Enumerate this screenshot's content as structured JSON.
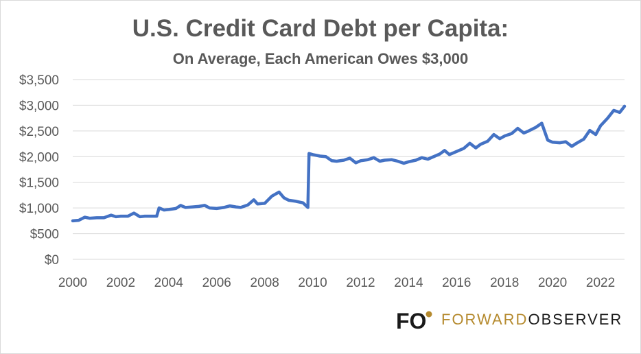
{
  "title": "U.S. Credit Card Debt per Capita:",
  "subtitle": "On Average, Each American Owes $3,000",
  "brand": {
    "logo_letters": "FO",
    "word1": "FORWARD",
    "word2": "OBSERVER",
    "accent_color": "#b58a2e",
    "dark_color": "#1a1a1a"
  },
  "chart_data": {
    "type": "line",
    "title": "U.S. Credit Card Debt per Capita:",
    "subtitle": "On Average, Each American Owes $3,000",
    "xlim": [
      2000,
      2023
    ],
    "ylim": [
      0,
      3500
    ],
    "x_ticks": [
      2000,
      2002,
      2004,
      2006,
      2008,
      2010,
      2012,
      2014,
      2016,
      2018,
      2020,
      2022
    ],
    "x_tick_labels": [
      "2000",
      "2002",
      "2004",
      "2006",
      "2008",
      "2010",
      "2012",
      "2014",
      "2016",
      "2018",
      "2020",
      "2022"
    ],
    "y_ticks": [
      0,
      500,
      1000,
      1500,
      2000,
      2500,
      3000,
      3500
    ],
    "y_tick_labels": [
      "$0",
      "$500",
      "$1,000",
      "$1,500",
      "$2,000",
      "$2,500",
      "$3,000",
      "$3,500"
    ],
    "grid": "horizontal",
    "line_color": "#4472c4",
    "series": [
      {
        "x": [
          2000.0,
          2000.25,
          2000.5,
          2000.7,
          2001.0,
          2001.3,
          2001.6,
          2001.8,
          2002.0,
          2002.3,
          2002.55,
          2002.8,
          2003.0,
          2003.3,
          2003.5,
          2003.6,
          2003.8,
          2004.0,
          2004.3,
          2004.5,
          2004.7,
          2005.0,
          2005.25,
          2005.5,
          2005.7,
          2006.0,
          2006.3,
          2006.55,
          2006.8,
          2007.0,
          2007.3,
          2007.55,
          2007.7,
          2008.0,
          2008.3,
          2008.6,
          2008.8,
          2009.0,
          2009.3,
          2009.6,
          2009.8,
          2009.85,
          2010.0,
          2010.3,
          2010.55,
          2010.8,
          2011.0,
          2011.3,
          2011.55,
          2011.8,
          2012.0,
          2012.3,
          2012.55,
          2012.8,
          2013.0,
          2013.3,
          2013.55,
          2013.8,
          2014.0,
          2014.3,
          2014.55,
          2014.8,
          2015.0,
          2015.3,
          2015.5,
          2015.7,
          2016.0,
          2016.3,
          2016.55,
          2016.8,
          2017.0,
          2017.3,
          2017.55,
          2017.8,
          2018.0,
          2018.3,
          2018.55,
          2018.8,
          2019.0,
          2019.3,
          2019.55,
          2019.8,
          2020.0,
          2020.3,
          2020.55,
          2020.8,
          2021.0,
          2021.3,
          2021.55,
          2021.8,
          2022.0,
          2022.3,
          2022.55,
          2022.8,
          2023.0
        ],
        "values": [
          750,
          760,
          820,
          800,
          810,
          810,
          860,
          830,
          840,
          840,
          900,
          830,
          840,
          840,
          840,
          1000,
          960,
          970,
          990,
          1050,
          1010,
          1020,
          1030,
          1050,
          1000,
          990,
          1010,
          1040,
          1020,
          1010,
          1060,
          1160,
          1080,
          1090,
          1230,
          1310,
          1200,
          1150,
          1130,
          1100,
          1010,
          2060,
          2040,
          2010,
          2000,
          1920,
          1910,
          1930,
          1970,
          1880,
          1920,
          1940,
          1980,
          1910,
          1930,
          1940,
          1910,
          1870,
          1900,
          1930,
          1980,
          1950,
          1990,
          2050,
          2120,
          2040,
          2100,
          2160,
          2260,
          2170,
          2240,
          2300,
          2430,
          2350,
          2400,
          2450,
          2550,
          2460,
          2500,
          2570,
          2650,
          2320,
          2280,
          2270,
          2290,
          2200,
          2260,
          2340,
          2510,
          2430,
          2600,
          2750,
          2900,
          2860,
          2980
        ]
      }
    ]
  }
}
